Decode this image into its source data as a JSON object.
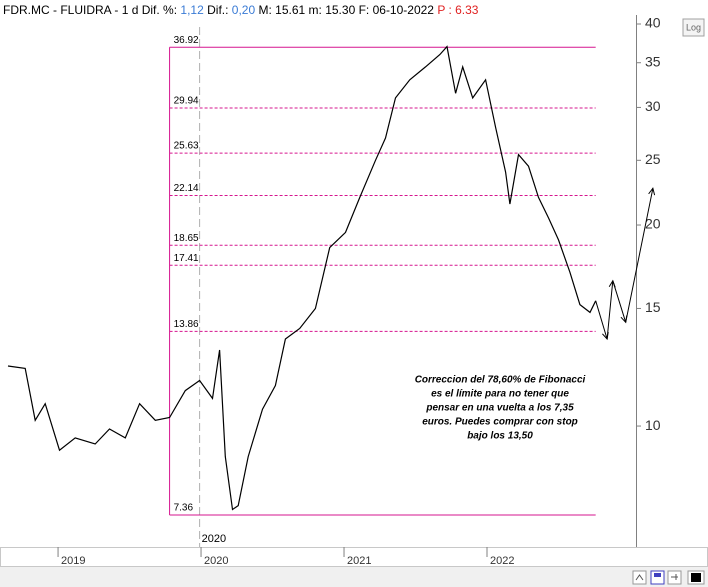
{
  "chart_data": {
    "type": "line",
    "header": [
      {
        "text": "FDR.MC - FLUIDRA -",
        "color": "#000000"
      },
      {
        "text": "1 d",
        "color": "#000000"
      },
      {
        "text": "Dif. %:",
        "color": "#000000"
      },
      {
        "text": "1,12",
        "color": "#3a7bd5"
      },
      {
        "text": "Dif.:",
        "color": "#000000"
      },
      {
        "text": "0,20",
        "color": "#3a7bd5"
      },
      {
        "text": "M: 15.61",
        "color": "#000000"
      },
      {
        "text": "m: 15.30",
        "color": "#000000"
      },
      {
        "text": "F: 06-10-2022",
        "color": "#000000"
      },
      {
        "text": "P : 6.33",
        "color": "#e02020"
      }
    ],
    "log_button": "Log",
    "log_scale": true,
    "x": [
      2018.65,
      2018.77,
      2018.84,
      2018.91,
      2019.01,
      2019.12,
      2019.26,
      2019.36,
      2019.47,
      2019.57,
      2019.68,
      2019.78,
      2019.89,
      2019.99,
      2020.08,
      2020.13,
      2020.17,
      2020.22,
      2020.26,
      2020.33,
      2020.43,
      2020.52,
      2020.59,
      2020.69,
      2020.8,
      2020.9,
      2021.01,
      2021.11,
      2021.22,
      2021.29,
      2021.36,
      2021.46,
      2021.57,
      2021.67,
      2021.72,
      2021.78,
      2021.83,
      2021.9,
      2021.99,
      2022.06,
      2022.13,
      2022.16,
      2022.22,
      2022.29,
      2022.36,
      2022.43,
      2022.5,
      2022.58,
      2022.65,
      2022.72,
      2022.76
    ],
    "series": [
      {
        "name": "FDR.MC",
        "color": "#000000",
        "values": [
          12.3,
          12.2,
          10.2,
          10.8,
          9.2,
          9.6,
          9.4,
          9.9,
          9.6,
          10.8,
          10.2,
          10.3,
          11.3,
          11.7,
          11.0,
          13.0,
          9.0,
          7.5,
          7.6,
          9.0,
          10.6,
          11.5,
          13.5,
          14.0,
          15.0,
          18.5,
          19.5,
          22.0,
          25.0,
          27.0,
          31.0,
          33.0,
          34.5,
          36.0,
          37.0,
          31.5,
          34.5,
          31.0,
          33.0,
          28.0,
          24.0,
          21.5,
          25.5,
          24.5,
          22.0,
          20.5,
          19.0,
          17.0,
          15.2,
          14.8,
          15.4
        ]
      }
    ],
    "projection": {
      "color": "#000000",
      "x": [
        2022.76,
        2022.84,
        2022.88,
        2022.97,
        2023.16
      ],
      "values": [
        15.4,
        13.5,
        16.5,
        14.3,
        22.7
      ]
    },
    "fibonacci": {
      "color": "#d6168f",
      "x_range": [
        2019.78,
        2022.76
      ],
      "levels": [
        36.92,
        29.94,
        25.63,
        22.14,
        18.65,
        17.41,
        13.86,
        7.36
      ]
    },
    "marker": {
      "x": 2019.99,
      "label": "2020"
    },
    "annotation": [
      "Correccion del 78,60% de Fibonacci",
      "es el límite para no tener que",
      "pensar en una vuelta a los 7,35",
      "euros. Puedes comprar con stop",
      "bajo los 13,50"
    ],
    "xlim": [
      2018.594,
      2023.042
    ],
    "xticks": [
      {
        "value": 2019.0,
        "label": "2019"
      },
      {
        "value": 2020.0,
        "label": "2020"
      },
      {
        "value": 2021.0,
        "label": "2021"
      },
      {
        "value": 2022.0,
        "label": "2022"
      }
    ],
    "ylim": [
      6.59,
      41.26
    ],
    "yticks": [
      10,
      15,
      20,
      25,
      30,
      35,
      40
    ]
  }
}
